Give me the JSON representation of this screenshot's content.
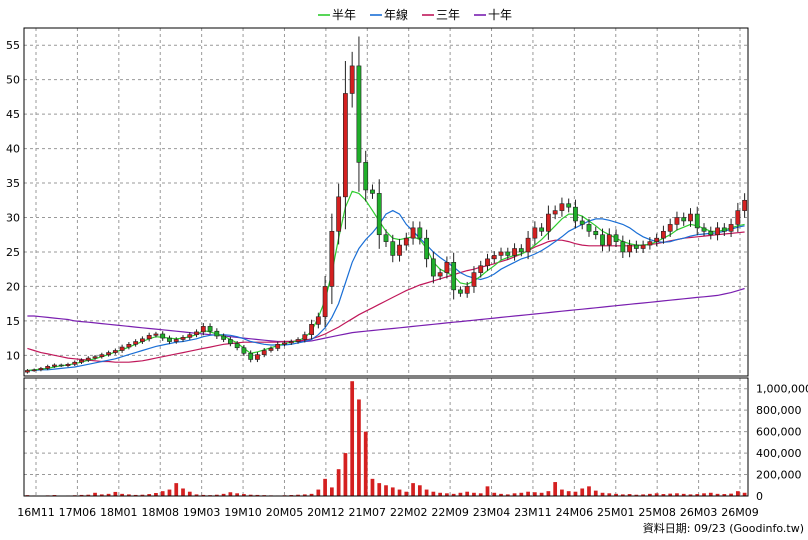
{
  "chart_data": {
    "type": "candlestick",
    "legend": {
      "placement": "top-center",
      "items": [
        {
          "name": "半年",
          "color": "#2ecc2e"
        },
        {
          "name": "年線",
          "color": "#1a6fd6"
        },
        {
          "name": "三年",
          "color": "#c0185a"
        },
        {
          "name": "十年",
          "color": "#7a1fb0"
        }
      ]
    },
    "price_axis": {
      "ticks": [
        10,
        15,
        20,
        25,
        30,
        35,
        40,
        45,
        50,
        55
      ],
      "range": [
        7,
        57.5
      ]
    },
    "volume_axis": {
      "ticks": [
        0,
        200000,
        400000,
        600000,
        800000,
        1000000
      ],
      "tick_labels": [
        "0",
        "200,000",
        "400,000",
        "600,000",
        "800,000",
        "1,000,000"
      ],
      "range": [
        0,
        1100000
      ]
    },
    "x_ticks": [
      "16M11",
      "17M06",
      "18M01",
      "18M08",
      "19M03",
      "19M10",
      "20M05",
      "20M12",
      "21M07",
      "22M02",
      "22M09",
      "23M04",
      "23M11",
      "24M06",
      "25M01",
      "25M08",
      "26M03",
      "26M09"
    ],
    "footer": "資料日期: 09/23  (Goodinfo.tw)",
    "grid": true,
    "colors": {
      "up": "#d42020",
      "down": "#1fae2a",
      "volume": "#d42020",
      "grid": "#999999"
    },
    "close": [
      7.8,
      7.9,
      8.1,
      8.4,
      8.6,
      8.5,
      8.7,
      9.0,
      9.3,
      9.6,
      9.8,
      10.1,
      10.4,
      10.7,
      11.2,
      11.6,
      12.0,
      12.4,
      12.9,
      13.1,
      12.5,
      12.0,
      12.3,
      12.6,
      13.0,
      13.4,
      14.2,
      13.5,
      12.8,
      12.3,
      11.7,
      11.1,
      10.3,
      9.4,
      10.1,
      10.7,
      11.0,
      11.6,
      11.8,
      12.0,
      12.3,
      13.0,
      14.5,
      15.6,
      20.0,
      28.0,
      33.0,
      48.0,
      52.0,
      38.0,
      34.0,
      33.5,
      27.5,
      26.5,
      24.5,
      26.0,
      27.0,
      28.5,
      27.0,
      24.0,
      21.5,
      22.0,
      23.5,
      19.5,
      19.0,
      20.0,
      22.0,
      23.0,
      24.0,
      24.5,
      25.0,
      24.5,
      25.5,
      25.0,
      27.0,
      28.5,
      28.0,
      30.5,
      31.0,
      32.0,
      31.5,
      29.5,
      29.0,
      28.0,
      27.5,
      26.0,
      27.5,
      26.5,
      25.0,
      26.0,
      25.5,
      26.0,
      26.5,
      27.0,
      28.0,
      29.0,
      30.0,
      29.5,
      30.5,
      28.5,
      28.0,
      27.5,
      28.5,
      28.0,
      29.0,
      31.0,
      32.5
    ],
    "volume": [
      8000,
      5000,
      4000,
      6000,
      9000,
      4000,
      5000,
      7000,
      10000,
      12000,
      30000,
      15000,
      20000,
      38000,
      20000,
      15000,
      10000,
      12000,
      18000,
      28000,
      45000,
      60000,
      120000,
      70000,
      40000,
      15000,
      10000,
      8000,
      12000,
      20000,
      35000,
      25000,
      18000,
      12000,
      10000,
      8000,
      6000,
      5000,
      7000,
      9000,
      12000,
      15000,
      20000,
      60000,
      160000,
      80000,
      250000,
      400000,
      1070000,
      900000,
      600000,
      160000,
      120000,
      100000,
      80000,
      60000,
      40000,
      120000,
      100000,
      60000,
      40000,
      30000,
      25000,
      20000,
      30000,
      40000,
      30000,
      25000,
      90000,
      30000,
      20000,
      15000,
      25000,
      30000,
      40000,
      35000,
      30000,
      45000,
      130000,
      60000,
      45000,
      40000,
      70000,
      90000,
      50000,
      30000,
      25000,
      20000,
      15000,
      18000,
      12000,
      15000,
      20000,
      25000,
      18000,
      22000,
      25000,
      20000,
      15000,
      18000,
      25000,
      30000,
      20000,
      18000,
      22000,
      45000,
      30000
    ],
    "ma_half_year": [
      7.8,
      7.9,
      8.0,
      8.1,
      8.3,
      8.5,
      8.6,
      8.8,
      9.0,
      9.3,
      9.5,
      9.8,
      10.1,
      10.5,
      10.8,
      11.2,
      11.6,
      12.0,
      12.4,
      12.7,
      12.6,
      12.5,
      12.4,
      12.5,
      12.7,
      13.0,
      13.6,
      13.4,
      13.1,
      12.8,
      12.3,
      11.8,
      11.0,
      10.3,
      10.5,
      10.8,
      11.1,
      11.4,
      11.7,
      11.9,
      12.1,
      12.6,
      13.5,
      15.5,
      18.0,
      22.0,
      27.0,
      31.5,
      33.8,
      33.5,
      32.5,
      31.0,
      29.5,
      28.0,
      27.0,
      26.8,
      27.0,
      27.2,
      26.8,
      25.5,
      23.5,
      22.5,
      22.0,
      21.5,
      20.5,
      20.3,
      20.8,
      21.5,
      22.3,
      23.0,
      23.8,
      24.2,
      24.5,
      24.7,
      25.2,
      26.0,
      26.8,
      27.8,
      28.8,
      29.8,
      30.5,
      30.5,
      30.2,
      29.5,
      28.8,
      28.0,
      27.5,
      27.0,
      26.5,
      26.2,
      26.0,
      26.0,
      26.1,
      26.5,
      27.0,
      27.5,
      28.2,
      28.6,
      29.0,
      28.8,
      28.4,
      28.0,
      28.0,
      28.2,
      28.5,
      28.8,
      29.0
    ],
    "ma_year": [
      7.8,
      7.8,
      7.9,
      7.9,
      8.0,
      8.1,
      8.2,
      8.3,
      8.5,
      8.7,
      8.9,
      9.1,
      9.3,
      9.5,
      9.8,
      10.1,
      10.4,
      10.7,
      11.0,
      11.3,
      11.5,
      11.7,
      11.9,
      12.0,
      12.2,
      12.4,
      12.7,
      12.9,
      13.0,
      13.0,
      12.9,
      12.7,
      12.4,
      12.0,
      11.8,
      11.6,
      11.5,
      11.5,
      11.5,
      11.6,
      11.8,
      12.0,
      12.3,
      13.0,
      14.0,
      15.5,
      17.5,
      20.5,
      23.5,
      25.5,
      26.8,
      27.8,
      29.0,
      30.5,
      31.0,
      30.5,
      29.0,
      28.0,
      27.0,
      26.0,
      25.0,
      24.2,
      23.5,
      22.8,
      22.0,
      21.5,
      21.2,
      21.0,
      21.3,
      21.8,
      22.5,
      23.0,
      23.5,
      24.0,
      24.3,
      24.7,
      25.2,
      25.8,
      26.5,
      27.2,
      28.0,
      28.5,
      29.0,
      29.5,
      29.8,
      29.8,
      29.6,
      29.3,
      29.0,
      28.5,
      27.8,
      27.2,
      26.8,
      26.5,
      26.4,
      26.5,
      26.8,
      27.0,
      27.3,
      27.5,
      27.6,
      27.7,
      27.8,
      28.0,
      28.3,
      28.6,
      28.8
    ],
    "ma_three_year": [
      11.0,
      10.7,
      10.4,
      10.2,
      10.0,
      9.8,
      9.6,
      9.5,
      9.4,
      9.3,
      9.2,
      9.1,
      9.1,
      9.0,
      9.0,
      9.0,
      9.1,
      9.2,
      9.4,
      9.6,
      9.8,
      10.0,
      10.2,
      10.4,
      10.6,
      10.8,
      11.0,
      11.2,
      11.4,
      11.6,
      11.7,
      11.8,
      11.9,
      11.9,
      11.9,
      11.9,
      11.9,
      11.9,
      12.0,
      12.0,
      12.1,
      12.2,
      12.4,
      12.7,
      13.1,
      13.6,
      14.1,
      14.7,
      15.3,
      15.9,
      16.4,
      16.9,
      17.4,
      17.9,
      18.4,
      18.9,
      19.4,
      19.8,
      20.2,
      20.5,
      20.8,
      21.1,
      21.4,
      21.7,
      22.0,
      22.3,
      22.5,
      22.8,
      23.0,
      23.3,
      23.6,
      23.9,
      24.3,
      24.7,
      25.2,
      25.7,
      26.1,
      26.5,
      26.7,
      26.7,
      26.5,
      26.2,
      26.0,
      25.9,
      25.9,
      25.9,
      25.9,
      25.9,
      25.9,
      25.9,
      25.9,
      26.0,
      26.1,
      26.2,
      26.4,
      26.6,
      26.8,
      27.0,
      27.1,
      27.2,
      27.3,
      27.4,
      27.5,
      27.6,
      27.7,
      27.8,
      27.9
    ],
    "ma_ten_year": [
      15.7,
      15.7,
      15.6,
      15.5,
      15.4,
      15.3,
      15.2,
      15.0,
      14.9,
      14.8,
      14.7,
      14.6,
      14.5,
      14.4,
      14.3,
      14.2,
      14.1,
      14.0,
      13.9,
      13.8,
      13.7,
      13.6,
      13.5,
      13.4,
      13.3,
      13.2,
      13.1,
      13.0,
      12.9,
      12.8,
      12.7,
      12.6,
      12.5,
      12.4,
      12.3,
      12.2,
      12.1,
      12.0,
      12.0,
      12.0,
      12.0,
      12.0,
      12.1,
      12.3,
      12.5,
      12.7,
      12.9,
      13.1,
      13.3,
      13.4,
      13.5,
      13.6,
      13.7,
      13.8,
      13.9,
      14.0,
      14.1,
      14.2,
      14.3,
      14.4,
      14.5,
      14.6,
      14.7,
      14.8,
      14.9,
      15.0,
      15.1,
      15.2,
      15.3,
      15.4,
      15.5,
      15.6,
      15.7,
      15.8,
      15.9,
      16.0,
      16.1,
      16.2,
      16.3,
      16.4,
      16.5,
      16.6,
      16.7,
      16.8,
      16.9,
      17.0,
      17.1,
      17.2,
      17.3,
      17.4,
      17.5,
      17.6,
      17.7,
      17.8,
      17.9,
      18.0,
      18.1,
      18.2,
      18.3,
      18.4,
      18.5,
      18.6,
      18.7,
      18.9,
      19.1,
      19.4,
      19.7
    ]
  }
}
